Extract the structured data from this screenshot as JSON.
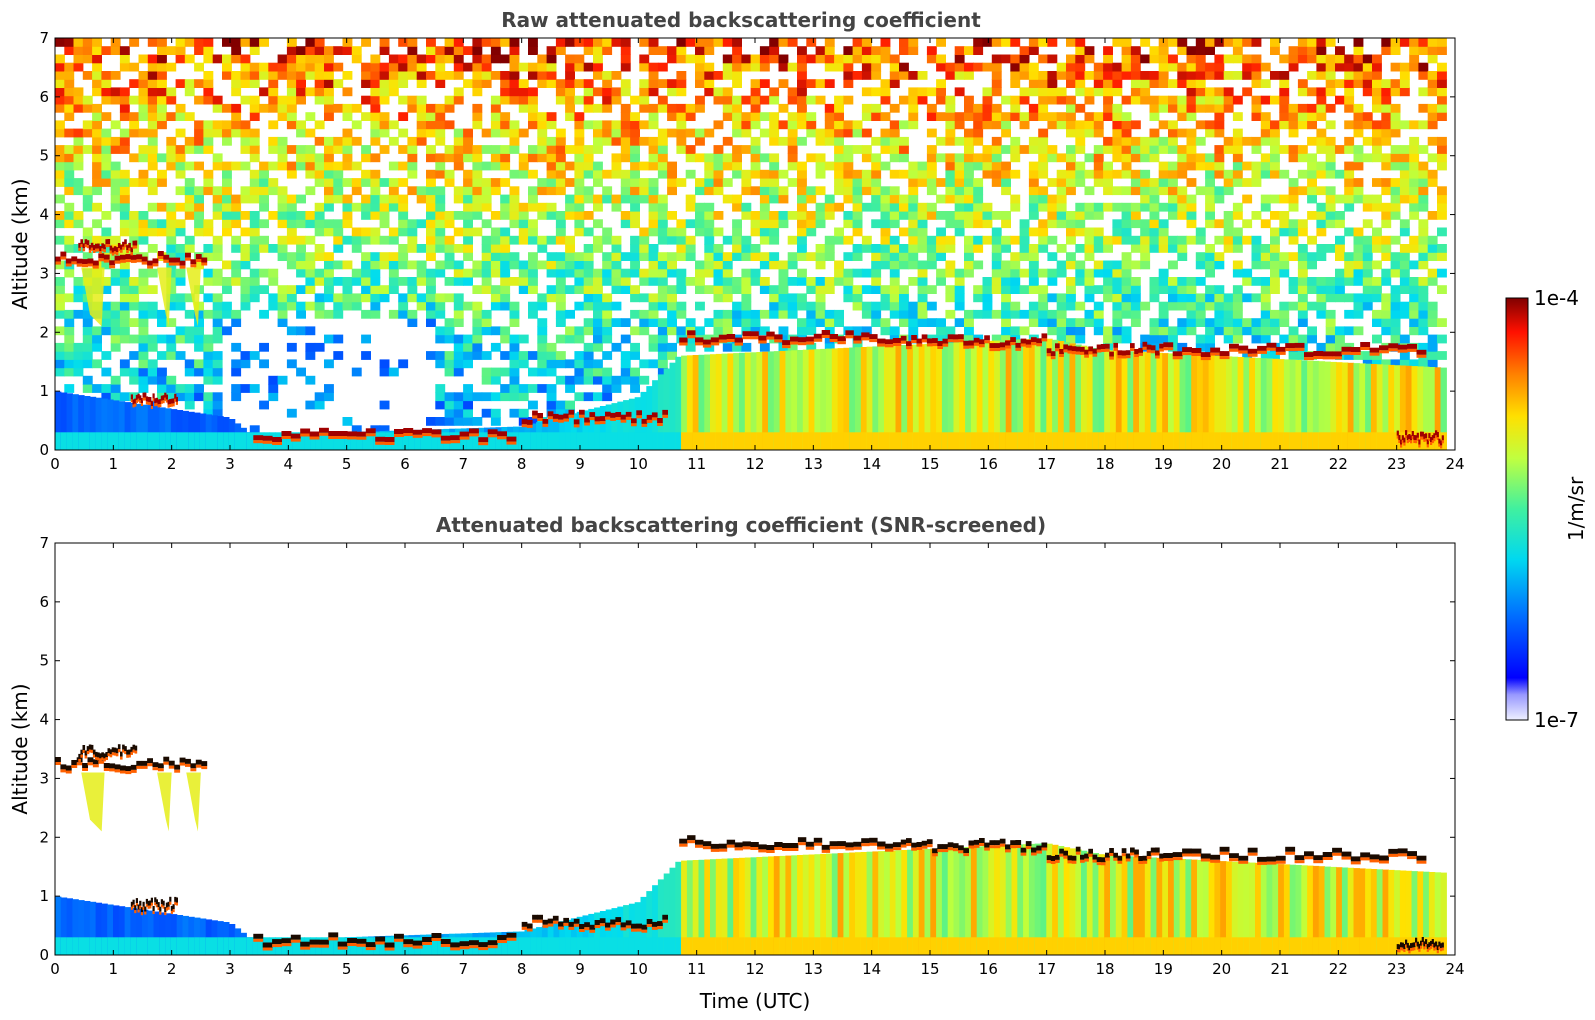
{
  "chart_data": [
    {
      "type": "heatmap",
      "title": "Raw attenuated backscattering coefficient",
      "xlabel": "",
      "ylabel": "Altitude (km)",
      "xlim": [
        0,
        24
      ],
      "ylim": [
        0,
        7
      ],
      "xticks": [
        0,
        1,
        2,
        3,
        4,
        5,
        6,
        7,
        8,
        9,
        10,
        11,
        12,
        13,
        14,
        15,
        16,
        17,
        18,
        19,
        20,
        21,
        22,
        23,
        24
      ],
      "yticks": [
        0,
        1,
        2,
        3,
        4,
        5,
        6,
        7
      ],
      "x_data_end": 23.85,
      "cloud_layers": [
        {
          "t_start": 0.0,
          "t_end": 2.6,
          "altitude_km": 3.25
        },
        {
          "t_start": 0.4,
          "t_end": 1.4,
          "altitude_km": 3.45
        },
        {
          "t_start": 1.3,
          "t_end": 2.1,
          "altitude_km": 0.85
        },
        {
          "t_start": 3.4,
          "t_end": 7.9,
          "altitude_km": 0.25
        },
        {
          "t_start": 8.0,
          "t_end": 10.5,
          "altitude_km": 0.55
        },
        {
          "t_start": 10.7,
          "t_end": 14.5,
          "altitude_km": 1.9
        },
        {
          "t_start": 14.5,
          "t_end": 17.0,
          "altitude_km": 1.85
        },
        {
          "t_start": 17.0,
          "t_end": 19.0,
          "altitude_km": 1.7
        },
        {
          "t_start": 19.0,
          "t_end": 23.5,
          "altitude_km": 1.7
        },
        {
          "t_start": 23.0,
          "t_end": 23.8,
          "altitude_km": 0.2
        }
      ],
      "boundary_layer_top_km": [
        {
          "t": 0,
          "alt": 1.0
        },
        {
          "t": 3,
          "alt": 0.55
        },
        {
          "t": 3.4,
          "alt": 0.25
        },
        {
          "t": 8,
          "alt": 0.4
        },
        {
          "t": 10,
          "alt": 0.9
        },
        {
          "t": 10.7,
          "alt": 1.6
        },
        {
          "t": 17,
          "alt": 1.9
        },
        {
          "t": 18,
          "alt": 1.7
        },
        {
          "t": 23.8,
          "alt": 1.4
        }
      ]
    },
    {
      "type": "heatmap",
      "title": "Attenuated backscattering coefficient (SNR-screened)",
      "xlabel": "Time (UTC)",
      "ylabel": "Altitude (km)",
      "xlim": [
        0,
        24
      ],
      "ylim": [
        0,
        7
      ],
      "xticks": [
        0,
        1,
        2,
        3,
        4,
        5,
        6,
        7,
        8,
        9,
        10,
        11,
        12,
        13,
        14,
        15,
        16,
        17,
        18,
        19,
        20,
        21,
        22,
        23,
        24
      ],
      "yticks": [
        0,
        1,
        2,
        3,
        4,
        5,
        6,
        7
      ],
      "x_data_end": 23.85,
      "cloud_layers": [
        {
          "t_start": 0.0,
          "t_end": 2.6,
          "altitude_km": 3.25
        },
        {
          "t_start": 0.4,
          "t_end": 1.4,
          "altitude_km": 3.45
        },
        {
          "t_start": 1.3,
          "t_end": 2.1,
          "altitude_km": 0.85
        },
        {
          "t_start": 3.4,
          "t_end": 7.9,
          "altitude_km": 0.25
        },
        {
          "t_start": 8.0,
          "t_end": 10.5,
          "altitude_km": 0.55
        },
        {
          "t_start": 10.7,
          "t_end": 14.5,
          "altitude_km": 1.9
        },
        {
          "t_start": 14.5,
          "t_end": 17.0,
          "altitude_km": 1.85
        },
        {
          "t_start": 17.0,
          "t_end": 19.0,
          "altitude_km": 1.7
        },
        {
          "t_start": 19.0,
          "t_end": 23.5,
          "altitude_km": 1.7
        },
        {
          "t_start": 23.0,
          "t_end": 23.8,
          "altitude_km": 0.2
        }
      ],
      "boundary_layer_top_km": [
        {
          "t": 0,
          "alt": 1.0
        },
        {
          "t": 3,
          "alt": 0.55
        },
        {
          "t": 3.4,
          "alt": 0.25
        },
        {
          "t": 8,
          "alt": 0.4
        },
        {
          "t": 10,
          "alt": 0.9
        },
        {
          "t": 10.7,
          "alt": 1.6
        },
        {
          "t": 17,
          "alt": 1.9
        },
        {
          "t": 18,
          "alt": 1.7
        },
        {
          "t": 23.8,
          "alt": 1.4
        }
      ]
    }
  ],
  "colorbar": {
    "label": "1/m/sr",
    "max_label": "1e-4",
    "min_label": "1e-7",
    "scale": "log",
    "range": [
      1e-07,
      0.0001
    ],
    "colormap": [
      "#eaeaff",
      "#0000ff",
      "#0080ff",
      "#00e0e0",
      "#80ff80",
      "#ffff00",
      "#ff9000",
      "#ff2000",
      "#800000"
    ]
  }
}
